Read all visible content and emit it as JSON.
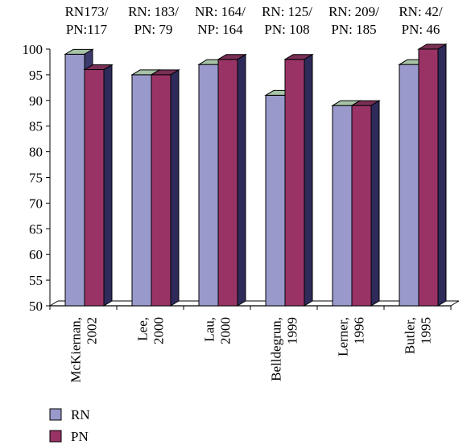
{
  "chart_data": {
    "type": "bar",
    "style": "3d-clustered",
    "categories": [
      "McKiernan, 2002",
      "Lee, 2000",
      "Lau, 2000",
      "Belldegrun, 1999",
      "Lerner, 1996",
      "Butler, 1995"
    ],
    "category_lines": [
      [
        "McKiernan,",
        "2002"
      ],
      [
        "Lee,",
        "2000"
      ],
      [
        "Lau,",
        "2000"
      ],
      [
        "Belldegrun,",
        "1999"
      ],
      [
        "Lerner,",
        "1996"
      ],
      [
        "Butler,",
        "1995"
      ]
    ],
    "top_labels": [
      [
        "RN173/",
        "PN:117"
      ],
      [
        "RN: 183/",
        "PN: 79"
      ],
      [
        "NR: 164/",
        "NP: 164"
      ],
      [
        "RN: 125/",
        "PN: 108"
      ],
      [
        "RN: 209/",
        "PN: 185"
      ],
      [
        "RN: 42/",
        "PN: 46"
      ]
    ],
    "series": [
      {
        "name": "RN",
        "values": [
          99,
          95,
          97,
          91,
          89,
          97
        ],
        "color": "#9999cc",
        "top_color": "#a7c3a7",
        "side_color": "#3d3b6e"
      },
      {
        "name": "PN",
        "values": [
          96,
          95,
          98,
          98,
          89,
          100
        ],
        "color": "#993366",
        "top_color": "#7a2f55",
        "side_color": "#2e2a5a"
      }
    ],
    "ylim": [
      50,
      100
    ],
    "yticks": [
      50,
      55,
      60,
      65,
      70,
      75,
      80,
      85,
      90,
      95,
      100
    ],
    "grid": false,
    "legend_position": "bottom-left",
    "xlabel": "",
    "ylabel": "",
    "title": ""
  }
}
